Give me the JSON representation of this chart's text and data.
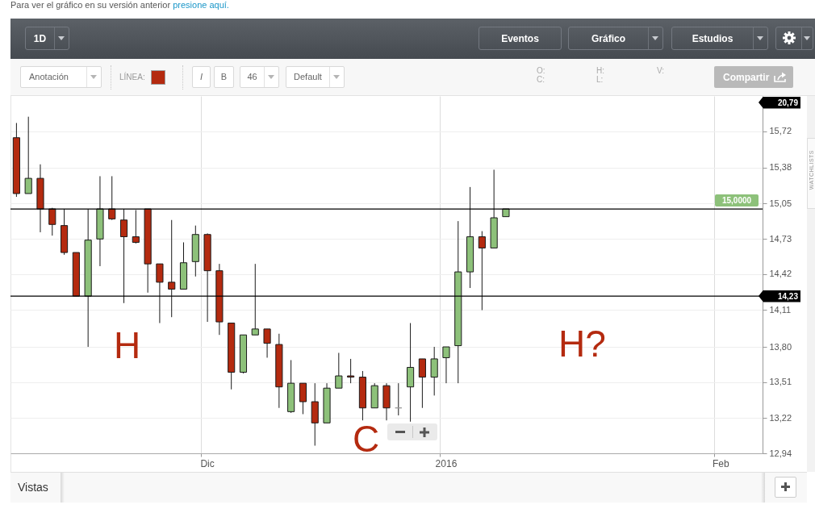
{
  "chart_data": {
    "type": "candlestick",
    "categories": [
      null,
      null,
      null,
      null,
      null,
      null,
      null,
      null,
      null,
      null,
      null,
      null,
      null,
      null,
      null,
      null,
      "Dic",
      null,
      null,
      null,
      null,
      null,
      null,
      null,
      null,
      null,
      null,
      null,
      null,
      null,
      null,
      null,
      null,
      null,
      null,
      null,
      "2016",
      null,
      null,
      null,
      null,
      null,
      null,
      null,
      null,
      null,
      null,
      null,
      null,
      null,
      null,
      null,
      null,
      null,
      null,
      null,
      null,
      null,
      null,
      "Feb",
      null,
      null,
      null
    ],
    "ohlc": [
      [
        15.66,
        15.8,
        15.11,
        15.14
      ],
      [
        15.14,
        15.86,
        15.14,
        15.28
      ],
      [
        15.28,
        15.41,
        14.79,
        15.0
      ],
      [
        15.0,
        15.01,
        14.76,
        14.86
      ],
      [
        14.85,
        15.0,
        14.59,
        14.61
      ],
      [
        14.61,
        14.61,
        14.23,
        14.23
      ],
      [
        14.23,
        15.0,
        13.8,
        14.72
      ],
      [
        14.73,
        15.3,
        14.49,
        15.0
      ],
      [
        15.0,
        15.3,
        14.9,
        14.91
      ],
      [
        14.9,
        15.0,
        14.17,
        14.75
      ],
      [
        14.75,
        14.99,
        14.69,
        14.7
      ],
      [
        15.0,
        15.0,
        14.26,
        14.51
      ],
      [
        14.51,
        14.51,
        14.0,
        14.35
      ],
      [
        14.35,
        14.9,
        14.05,
        14.29
      ],
      [
        14.29,
        14.7,
        14.29,
        14.52
      ],
      [
        14.53,
        14.85,
        14.4,
        14.77
      ],
      [
        14.77,
        14.78,
        14.01,
        14.45
      ],
      [
        14.45,
        14.51,
        13.9,
        14.01
      ],
      [
        14.0,
        14.0,
        13.45,
        13.59
      ],
      [
        13.59,
        13.9,
        13.58,
        13.9
      ],
      [
        13.9,
        14.51,
        13.9,
        13.95
      ],
      [
        13.95,
        13.95,
        13.71,
        13.83
      ],
      [
        13.82,
        13.91,
        13.3,
        13.47
      ],
      [
        13.27,
        13.69,
        13.26,
        13.5
      ],
      [
        13.5,
        13.5,
        13.25,
        13.35
      ],
      [
        13.35,
        13.5,
        13.0,
        13.18
      ],
      [
        13.18,
        13.5,
        13.18,
        13.46
      ],
      [
        13.46,
        13.75,
        13.46,
        13.56
      ],
      [
        13.56,
        13.7,
        13.5,
        13.55
      ],
      [
        13.55,
        13.6,
        13.2,
        13.3
      ],
      [
        13.3,
        13.5,
        13.3,
        13.48
      ],
      [
        13.48,
        13.5,
        13.2,
        13.3
      ],
      [
        13.3,
        13.5,
        13.24,
        13.3
      ],
      [
        13.47,
        14.0,
        13.19,
        13.63
      ],
      [
        13.7,
        13.7,
        13.3,
        13.55
      ],
      [
        13.55,
        13.8,
        13.4,
        13.7
      ],
      [
        13.71,
        13.8,
        13.5,
        13.8
      ],
      [
        13.81,
        14.89,
        13.5,
        14.44
      ],
      [
        14.44,
        15.2,
        14.3,
        14.75
      ],
      [
        14.75,
        14.8,
        14.11,
        14.65
      ],
      [
        14.65,
        15.36,
        14.65,
        14.92
      ],
      [
        14.93,
        15.0,
        14.93,
        15.0
      ],
      null,
      null,
      null,
      null,
      null,
      null,
      null,
      null,
      null,
      null,
      null,
      null,
      null,
      null,
      null,
      null,
      null,
      null,
      null,
      null,
      null
    ],
    "colors": [
      "#b42a0f",
      "#8dc17a",
      "#b42a0f",
      "#b42a0f",
      "#b42a0f",
      "#b42a0f",
      "#8dc17a",
      "#8dc17a",
      "#b42a0f",
      "#b42a0f",
      "#b42a0f",
      "#b42a0f",
      "#b42a0f",
      "#b42a0f",
      "#8dc17a",
      "#8dc17a",
      "#b42a0f",
      "#b42a0f",
      "#b42a0f",
      "#8dc17a",
      "#8dc17a",
      "#b42a0f",
      "#b42a0f",
      "#8dc17a",
      "#b42a0f",
      "#b42a0f",
      "#8dc17a",
      "#8dc17a",
      "#b42a0f",
      "#b42a0f",
      "#8dc17a",
      "#b42a0f",
      "#999999",
      "#8dc17a",
      "#b42a0f",
      "#8dc17a",
      "#8dc17a",
      "#8dc17a",
      "#8dc17a",
      "#b42a0f",
      "#8dc17a",
      "#8dc17a",
      null,
      null,
      null,
      null,
      null,
      null,
      null,
      null,
      null,
      null,
      null,
      null,
      null,
      null,
      null,
      null,
      null,
      null,
      null,
      null,
      null
    ],
    "ylim": [
      12.94,
      16.06
    ],
    "yticks": [
      {
        "value": 12.94,
        "label": "12,94"
      },
      {
        "value": 13.22,
        "label": "13,22"
      },
      {
        "value": 13.51,
        "label": "13,51"
      },
      {
        "value": 13.8,
        "label": "13,80"
      },
      {
        "value": 14.11,
        "label": "14,11"
      },
      {
        "value": 14.42,
        "label": "14,42"
      },
      {
        "value": 14.73,
        "label": "14,73"
      },
      {
        "value": 15.05,
        "label": "15,05"
      },
      {
        "value": 15.38,
        "label": "15,38"
      },
      {
        "value": 15.72,
        "label": "15,72"
      }
    ],
    "log": true,
    "grid": true,
    "ref_lines": [
      {
        "axis": "y",
        "value": 15,
        "color": "#000000"
      },
      {
        "axis": "y",
        "value": 14.23,
        "label": "14,23",
        "color": "#000000"
      }
    ],
    "annotations": [
      "Para ver el gráfico en su versión anterior",
      "presione aquí.",
      "1D",
      "Eventos",
      "Gráfico",
      "Estudios",
      "Anotación",
      "LÍNEA:",
      "I",
      "B",
      "46",
      "Default",
      "O:",
      "C:",
      "H:",
      "L:",
      "V:",
      "Compartir",
      "H",
      "C",
      "H?",
      "20,79",
      {
        "text": "15,0000",
        "y": 15
      },
      "Vistas",
      "WATCHLISTS"
    ]
  }
}
